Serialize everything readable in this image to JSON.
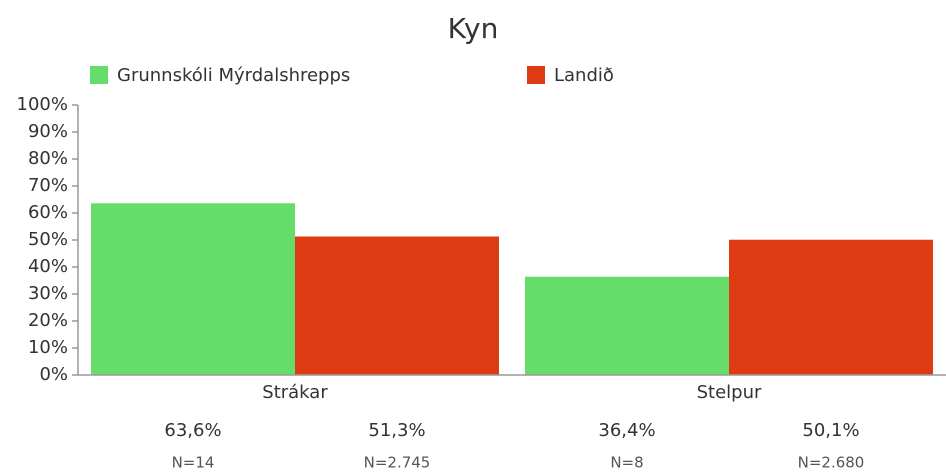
{
  "chart_data": {
    "type": "bar",
    "title": "Kyn",
    "categories": [
      "Strákar",
      "Stelpur"
    ],
    "series": [
      {
        "name": "Grunnskóli Mýrdalshrepps",
        "color": "#66dd6a",
        "values": [
          63.6,
          36.4
        ],
        "value_labels": [
          "63,6%",
          "36,4%"
        ],
        "n_labels": [
          "N=14",
          "N=8"
        ]
      },
      {
        "name": "Landið",
        "color": "#de3b14",
        "values": [
          51.3,
          50.1
        ],
        "value_labels": [
          "51,3%",
          "50,1%"
        ],
        "n_labels": [
          "N=2.745",
          "N=2.680"
        ]
      }
    ],
    "ylim": [
      0,
      100
    ],
    "yticks": [
      {
        "value": 0,
        "label": "0%"
      },
      {
        "value": 10,
        "label": "10%"
      },
      {
        "value": 20,
        "label": "20%"
      },
      {
        "value": 30,
        "label": "30%"
      },
      {
        "value": 40,
        "label": "40%"
      },
      {
        "value": 50,
        "label": "50%"
      },
      {
        "value": 60,
        "label": "60%"
      },
      {
        "value": 70,
        "label": "70%"
      },
      {
        "value": 80,
        "label": "80%"
      },
      {
        "value": 90,
        "label": "90%"
      },
      {
        "value": 100,
        "label": "100%"
      }
    ],
    "legend": "top"
  }
}
